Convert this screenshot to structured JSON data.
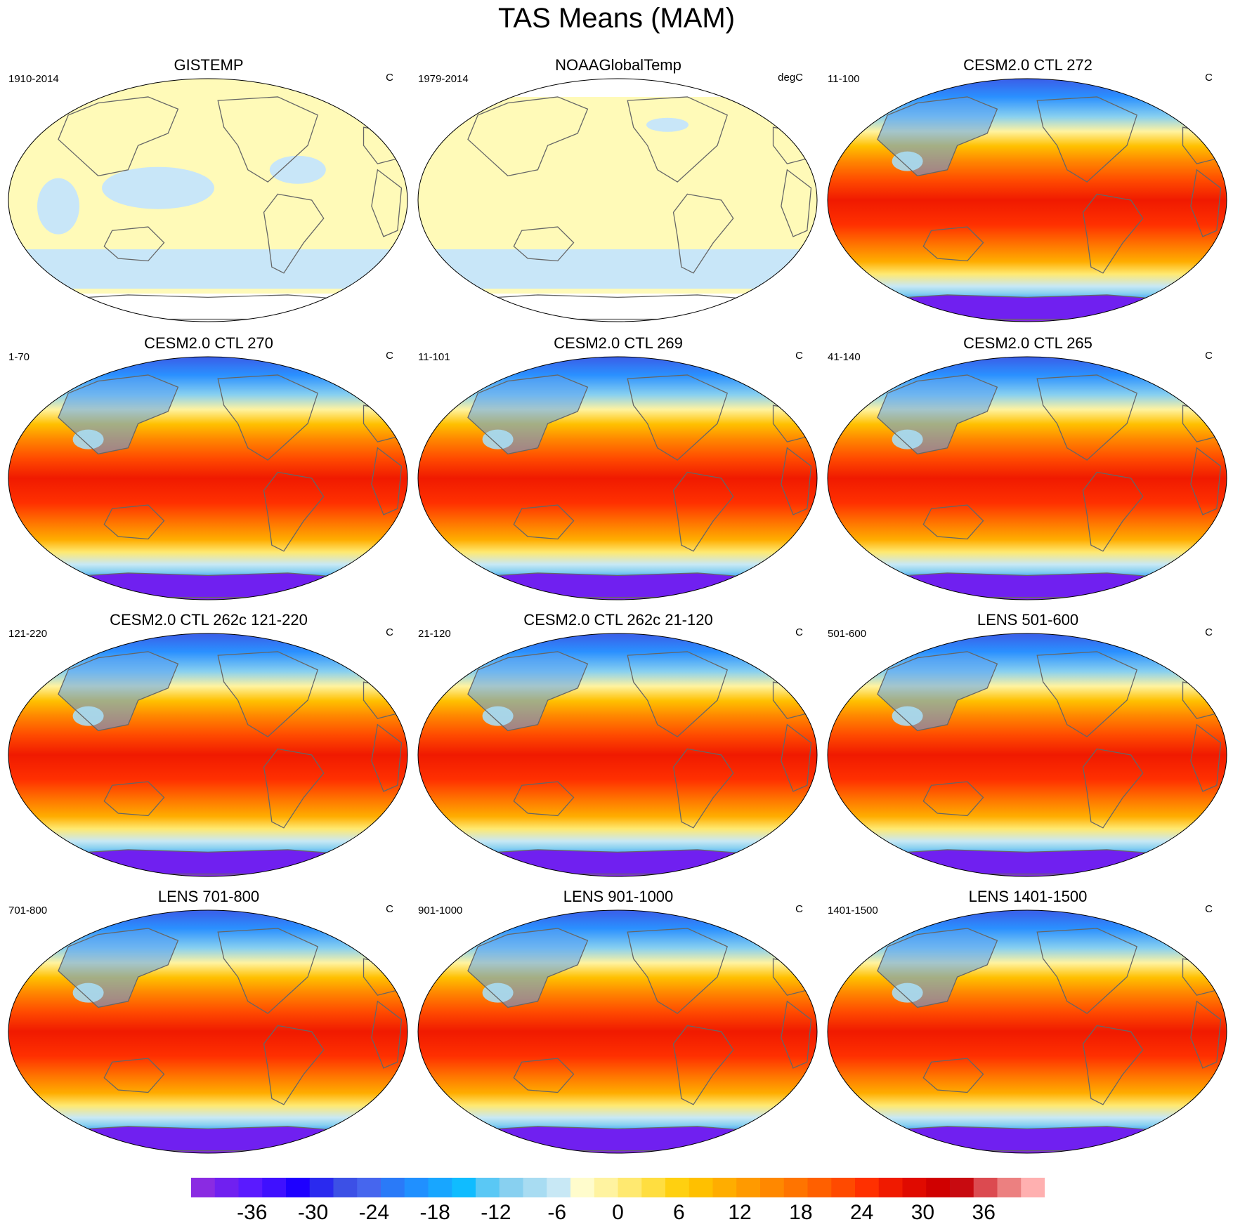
{
  "title": "TAS Means (MAM)",
  "panels": [
    {
      "title": "GISTEMP",
      "range": "1910-2014",
      "units": "C",
      "style": "obs"
    },
    {
      "title": "NOAAGlobalTemp",
      "range": "1979-2014",
      "units": "degC",
      "style": "obs"
    },
    {
      "title": "CESM2.0 CTL 272",
      "range": "11-100",
      "units": "C",
      "style": "model"
    },
    {
      "title": "CESM2.0 CTL 270",
      "range": "1-70",
      "units": "C",
      "style": "model"
    },
    {
      "title": "CESM2.0 CTL 269",
      "range": "11-101",
      "units": "C",
      "style": "model"
    },
    {
      "title": "CESM2.0 CTL 265",
      "range": "41-140",
      "units": "C",
      "style": "model"
    },
    {
      "title": "CESM2.0 CTL 262c 121-220",
      "range": "121-220",
      "units": "C",
      "style": "model"
    },
    {
      "title": "CESM2.0 CTL 262c 21-120",
      "range": "21-120",
      "units": "C",
      "style": "model"
    },
    {
      "title": "LENS 501-600",
      "range": "501-600",
      "units": "C",
      "style": "model"
    },
    {
      "title": "LENS 701-800",
      "range": "701-800",
      "units": "C",
      "style": "model"
    },
    {
      "title": "LENS 901-1000",
      "range": "901-1000",
      "units": "C",
      "style": "model"
    },
    {
      "title": "LENS 1401-1500",
      "range": "1401-1500",
      "units": "C",
      "style": "model"
    }
  ],
  "colorbar": {
    "colors": [
      "#8a2be2",
      "#7020f0",
      "#5a1aff",
      "#3f10ff",
      "#1e00ff",
      "#2a2aef",
      "#3c50e6",
      "#4666ee",
      "#2a7af8",
      "#2090ff",
      "#18a6ff",
      "#10bcff",
      "#5ac8f5",
      "#88d0f0",
      "#a8dcf2",
      "#c8e8f5",
      "#fffccc",
      "#fff3a0",
      "#ffe970",
      "#ffde40",
      "#ffd010",
      "#ffc000",
      "#ffad00",
      "#ff9a00",
      "#ff8800",
      "#ff7400",
      "#ff6000",
      "#ff4a00",
      "#ff3000",
      "#f01a00",
      "#e00a00",
      "#d00000",
      "#c80a10",
      "#dc4a50",
      "#ec8080",
      "#ffb0b0"
    ],
    "labels": [
      "-36",
      "-30",
      "-24",
      "-18",
      "-12",
      "-6",
      "0",
      "6",
      "12",
      "18",
      "24",
      "30",
      "36"
    ],
    "label_values": [
      -36,
      -30,
      -24,
      -18,
      -12,
      -6,
      0,
      6,
      12,
      18,
      24,
      30,
      36
    ],
    "min": -42,
    "max": 42,
    "step": 2
  }
}
